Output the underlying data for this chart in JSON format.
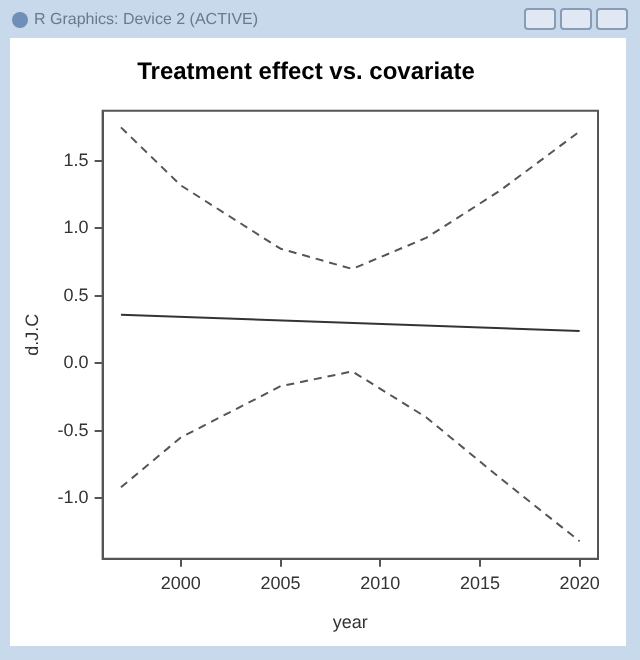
{
  "chart_data": {
    "type": "line",
    "title": "Treatment effect vs. covariate",
    "xlabel": "year",
    "ylabel": "d.J.C",
    "annotations": [
      "R Graphics: Device 2 (ACTIVE)"
    ],
    "xlim": [
      1996.08,
      2020.92
    ],
    "xticks": [
      2000,
      2005,
      2010,
      2015,
      2020
    ],
    "ylim": [
      -1.45,
      1.873
    ],
    "yticks": [
      {
        "value": -1,
        "label": "-1.0"
      },
      {
        "value": -0.5,
        "label": "-0.5"
      },
      {
        "value": 0,
        "label": "0.0"
      },
      {
        "value": 0.5,
        "label": "0.5"
      },
      {
        "value": 1,
        "label": "1.0"
      },
      {
        "value": 1.5,
        "label": "1.5"
      }
    ],
    "grid": false,
    "legend": false,
    "marker": "none",
    "series": [
      {
        "color": "#333333",
        "line_style": "solid",
        "x": [
          1997,
          2020
        ],
        "values": [
          0.36,
          0.24
        ]
      },
      {
        "color": "#555555",
        "line_style": "dashed",
        "x": [
          1997,
          2000,
          2005,
          2008.6,
          2012.3,
          2016,
          2020
        ],
        "values": [
          1.75,
          1.32,
          0.85,
          0.7,
          0.93,
          1.28,
          1.72
        ]
      },
      {
        "color": "#555555",
        "line_style": "dashed",
        "x": [
          1997,
          2000,
          2005,
          2008.6,
          2012.3,
          2016,
          2020
        ],
        "values": [
          -0.92,
          -0.55,
          -0.17,
          -0.06,
          -0.4,
          -0.85,
          -1.32
        ]
      }
    ]
  }
}
